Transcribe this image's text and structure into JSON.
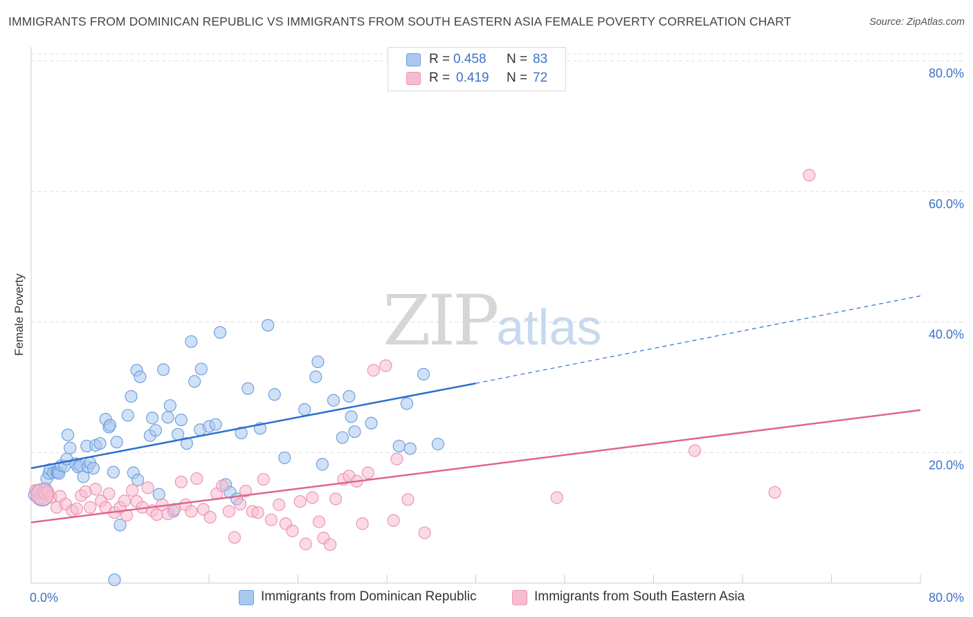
{
  "title": "IMMIGRANTS FROM DOMINICAN REPUBLIC VS IMMIGRANTS FROM SOUTH EASTERN ASIA FEMALE POVERTY CORRELATION CHART",
  "source": "Source: ZipAtlas.com",
  "watermark": {
    "zip": "ZIP",
    "atlas": "atlas"
  },
  "legend": {
    "rows": [
      {
        "r_label": "R =",
        "r_value": "0.458",
        "n_label": "N =",
        "n_value": "83"
      },
      {
        "r_label": "R =",
        "r_value": "0.419",
        "n_label": "N =",
        "n_value": "72"
      }
    ]
  },
  "colors": {
    "blue_fill": "#a9c8f0",
    "blue_stroke": "#6fa0dc",
    "blue_line": "#2a6fce",
    "pink_fill": "#f6bdd0",
    "pink_stroke": "#ee93b2",
    "pink_line": "#e0648f",
    "axis_text": "#3b73c8",
    "grid": "#dddddd"
  },
  "chart_data": {
    "type": "scatter",
    "title": "IMMIGRANTS FROM DOMINICAN REPUBLIC VS IMMIGRANTS FROM SOUTH EASTERN ASIA FEMALE POVERTY CORRELATION CHART",
    "xlabel": "",
    "ylabel": "Female Poverty",
    "xlim": [
      0,
      80
    ],
    "ylim": [
      0,
      80
    ],
    "x_tick_labels": [
      "0.0%",
      "80.0%"
    ],
    "y_tick_labels": [
      "20.0%",
      "40.0%",
      "60.0%",
      "80.0%"
    ],
    "y_ticks": [
      20,
      40,
      60,
      80
    ],
    "grid": true,
    "legend_position": "top-center",
    "series": [
      {
        "name": "Immigrants from Dominican Republic",
        "r": 0.458,
        "n": 83,
        "color": "#a9c8f0",
        "trend": {
          "x0": 0,
          "y0": 17.6,
          "x1": 40,
          "y1": 30.6,
          "dashed_to_x": 80,
          "dashed_to_y": 44.0
        },
        "points": [
          [
            0.3,
            13.5
          ],
          [
            0.6,
            14.2
          ],
          [
            0.9,
            13.8
          ],
          [
            1.1,
            13.9
          ],
          [
            1.3,
            14.5
          ],
          [
            1.4,
            16.0
          ],
          [
            1.6,
            16.8
          ],
          [
            1.7,
            17.4
          ],
          [
            2.0,
            16.9
          ],
          [
            2.3,
            17.0
          ],
          [
            2.4,
            17.0
          ],
          [
            2.5,
            16.8
          ],
          [
            2.7,
            18.0
          ],
          [
            3.0,
            17.9
          ],
          [
            3.2,
            19.0
          ],
          [
            3.3,
            22.7
          ],
          [
            3.5,
            20.7
          ],
          [
            4.0,
            18.3
          ],
          [
            4.2,
            17.8
          ],
          [
            4.4,
            18.0
          ],
          [
            4.7,
            16.3
          ],
          [
            5.1,
            17.8
          ],
          [
            5.0,
            21.0
          ],
          [
            5.3,
            18.4
          ],
          [
            5.6,
            17.6
          ],
          [
            5.8,
            21.1
          ],
          [
            6.2,
            21.4
          ],
          [
            6.7,
            25.1
          ],
          [
            7.0,
            23.9
          ],
          [
            7.1,
            24.2
          ],
          [
            7.4,
            17.0
          ],
          [
            7.7,
            21.6
          ],
          [
            8.0,
            8.9
          ],
          [
            7.5,
            0.5
          ],
          [
            8.7,
            25.7
          ],
          [
            9.0,
            28.6
          ],
          [
            9.2,
            16.9
          ],
          [
            9.5,
            32.6
          ],
          [
            9.8,
            31.6
          ],
          [
            9.6,
            15.8
          ],
          [
            10.7,
            22.6
          ],
          [
            10.9,
            25.3
          ],
          [
            11.2,
            23.4
          ],
          [
            11.5,
            13.6
          ],
          [
            11.9,
            32.7
          ],
          [
            12.3,
            25.4
          ],
          [
            12.5,
            27.2
          ],
          [
            12.8,
            11.0
          ],
          [
            13.2,
            22.8
          ],
          [
            13.5,
            25.0
          ],
          [
            14.0,
            21.4
          ],
          [
            14.4,
            37.0
          ],
          [
            14.7,
            30.9
          ],
          [
            15.2,
            23.5
          ],
          [
            15.3,
            32.8
          ],
          [
            16.0,
            24.0
          ],
          [
            16.6,
            24.3
          ],
          [
            17.0,
            38.4
          ],
          [
            17.5,
            15.1
          ],
          [
            17.9,
            13.9
          ],
          [
            18.5,
            12.9
          ],
          [
            18.9,
            23.0
          ],
          [
            19.5,
            29.8
          ],
          [
            20.6,
            23.7
          ],
          [
            21.3,
            39.5
          ],
          [
            21.9,
            28.9
          ],
          [
            22.8,
            19.2
          ],
          [
            24.6,
            26.6
          ],
          [
            25.6,
            31.6
          ],
          [
            25.8,
            33.9
          ],
          [
            26.2,
            18.2
          ],
          [
            27.2,
            28.0
          ],
          [
            28.0,
            22.3
          ],
          [
            28.6,
            28.6
          ],
          [
            28.8,
            25.5
          ],
          [
            29.1,
            23.2
          ],
          [
            30.6,
            24.5
          ],
          [
            33.1,
            21.0
          ],
          [
            33.8,
            27.5
          ],
          [
            34.1,
            20.6
          ],
          [
            35.3,
            32.0
          ],
          [
            36.6,
            21.3
          ],
          [
            1.0,
            13.5
          ]
        ]
      },
      {
        "name": "Immigrants from South Eastern Asia",
        "r": 0.419,
        "n": 72,
        "color": "#f6bdd0",
        "trend": {
          "x0": 0,
          "y0": 9.3,
          "x1": 80,
          "y1": 26.5
        },
        "points": [
          [
            0.4,
            14.2
          ],
          [
            0.8,
            13.0
          ],
          [
            1.2,
            13.8
          ],
          [
            1.5,
            14.0
          ],
          [
            1.8,
            13.2
          ],
          [
            2.3,
            11.6
          ],
          [
            2.6,
            13.3
          ],
          [
            3.1,
            12.1
          ],
          [
            3.7,
            11.1
          ],
          [
            4.1,
            11.4
          ],
          [
            4.5,
            13.4
          ],
          [
            4.9,
            14.0
          ],
          [
            5.3,
            11.6
          ],
          [
            5.8,
            14.4
          ],
          [
            6.3,
            12.6
          ],
          [
            6.7,
            11.6
          ],
          [
            7.0,
            13.7
          ],
          [
            7.5,
            10.8
          ],
          [
            8.0,
            11.6
          ],
          [
            8.6,
            10.4
          ],
          [
            9.1,
            14.2
          ],
          [
            9.5,
            12.5
          ],
          [
            10.0,
            11.6
          ],
          [
            10.5,
            14.6
          ],
          [
            10.9,
            11.1
          ],
          [
            11.3,
            10.5
          ],
          [
            11.8,
            12.0
          ],
          [
            12.3,
            10.6
          ],
          [
            12.9,
            11.3
          ],
          [
            13.5,
            15.5
          ],
          [
            13.9,
            12.0
          ],
          [
            14.4,
            11.0
          ],
          [
            14.9,
            16.0
          ],
          [
            15.5,
            11.3
          ],
          [
            16.1,
            10.1
          ],
          [
            16.7,
            13.7
          ],
          [
            17.2,
            14.9
          ],
          [
            17.8,
            11.0
          ],
          [
            18.3,
            7.0
          ],
          [
            18.8,
            12.1
          ],
          [
            19.3,
            14.1
          ],
          [
            19.9,
            11.0
          ],
          [
            20.4,
            10.8
          ],
          [
            20.9,
            15.9
          ],
          [
            21.6,
            9.7
          ],
          [
            22.3,
            12.0
          ],
          [
            22.9,
            9.1
          ],
          [
            23.5,
            8.0
          ],
          [
            24.2,
            12.5
          ],
          [
            24.7,
            6.0
          ],
          [
            25.3,
            13.1
          ],
          [
            25.9,
            9.4
          ],
          [
            26.3,
            6.9
          ],
          [
            26.9,
            5.9
          ],
          [
            27.4,
            12.9
          ],
          [
            28.1,
            15.9
          ],
          [
            28.6,
            16.4
          ],
          [
            29.3,
            15.6
          ],
          [
            29.8,
            9.1
          ],
          [
            30.3,
            16.9
          ],
          [
            30.8,
            32.6
          ],
          [
            31.9,
            33.3
          ],
          [
            32.6,
            9.6
          ],
          [
            32.9,
            19.0
          ],
          [
            33.9,
            12.8
          ],
          [
            35.4,
            7.7
          ],
          [
            47.3,
            13.1
          ],
          [
            59.7,
            20.3
          ],
          [
            66.9,
            13.9
          ],
          [
            70.0,
            62.5
          ],
          [
            1.0,
            13.6
          ],
          [
            8.4,
            12.6
          ]
        ]
      }
    ]
  },
  "axis": {
    "x_left_label": "0.0%",
    "x_right_label": "80.0%",
    "y_labels": [
      "80.0%",
      "60.0%",
      "40.0%",
      "20.0%"
    ],
    "ylabel": "Female Poverty"
  },
  "bottom_legend": [
    {
      "label": "Immigrants from Dominican Republic"
    },
    {
      "label": "Immigrants from South Eastern Asia"
    }
  ]
}
